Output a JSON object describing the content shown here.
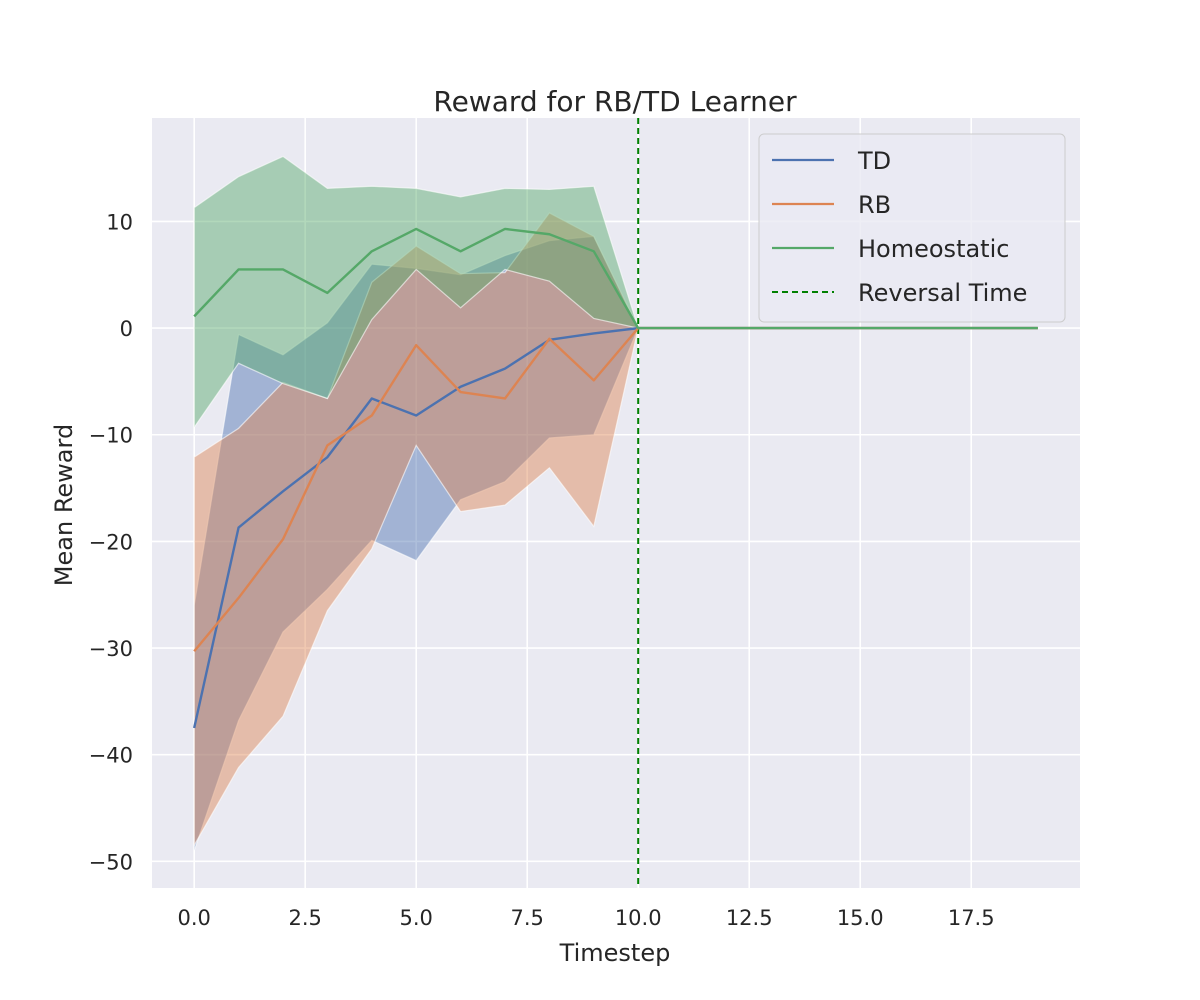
{
  "chart_data": {
    "type": "line",
    "title": "Reward for RB/TD Learner",
    "xlabel": "Timestep",
    "ylabel": "Mean Reward",
    "xlim": [
      -0.95,
      19.95
    ],
    "ylim": [
      -52.5,
      19.7
    ],
    "xticks": [
      0.0,
      2.5,
      5.0,
      7.5,
      10.0,
      12.5,
      15.0,
      17.5
    ],
    "xtick_labels": [
      "0.0",
      "2.5",
      "5.0",
      "7.5",
      "10.0",
      "12.5",
      "15.0",
      "17.5"
    ],
    "yticks": [
      10,
      0,
      -10,
      -20,
      -30,
      -40,
      -50
    ],
    "ytick_labels": [
      "10",
      "0",
      "−10",
      "−20",
      "−30",
      "−40",
      "−50"
    ],
    "grid": true,
    "legend_position": "top-right",
    "x": [
      0,
      1,
      2,
      3,
      4,
      5,
      6,
      7,
      8,
      9,
      10,
      11,
      12,
      13,
      14,
      15,
      16,
      17,
      18,
      19
    ],
    "series": [
      {
        "name": "TD",
        "color": "#4c72b0",
        "values": [
          -37.5,
          -18.7,
          -15.3,
          -12.1,
          -6.6,
          -8.2,
          -5.5,
          -3.8,
          -1.1,
          -0.5,
          0,
          0,
          0,
          0,
          0,
          0,
          0,
          0,
          0,
          0
        ],
        "band_upper": [
          -26.0,
          -0.6,
          -2.5,
          0.5,
          6.0,
          5.6,
          5.0,
          6.8,
          8.2,
          8.6,
          0
        ],
        "band_lower": [
          -49.0,
          -36.8,
          -28.5,
          -24.5,
          -19.9,
          -21.8,
          -16.1,
          -14.4,
          -10.3,
          -10.0,
          0
        ]
      },
      {
        "name": "RB",
        "color": "#dd8452",
        "values": [
          -30.3,
          -25.3,
          -19.8,
          -11.0,
          -8.2,
          -1.6,
          -6.0,
          -6.6,
          -1.0,
          -4.9,
          0,
          0,
          0,
          0,
          0,
          0,
          0,
          0,
          0,
          0
        ],
        "band_upper": [
          -12.1,
          -9.4,
          -5.1,
          -6.6,
          4.3,
          7.7,
          5.1,
          5.2,
          10.8,
          8.6,
          0
        ],
        "band_lower": [
          -48.5,
          -41.2,
          -36.4,
          -26.5,
          -20.7,
          -11.0,
          -17.2,
          -16.6,
          -13.1,
          -18.6,
          0
        ]
      },
      {
        "name": "Homeostatic",
        "color": "#55a868",
        "values": [
          1.1,
          5.5,
          5.5,
          3.3,
          7.2,
          9.3,
          7.2,
          9.3,
          8.8,
          7.2,
          0,
          0,
          0,
          0,
          0,
          0,
          0,
          0,
          0,
          0
        ],
        "band_upper": [
          11.3,
          14.2,
          16.1,
          13.1,
          13.3,
          13.1,
          12.3,
          13.1,
          13.0,
          13.3,
          0
        ],
        "band_lower": [
          -9.3,
          -3.3,
          -5.2,
          -6.6,
          0.8,
          5.5,
          1.9,
          5.5,
          4.4,
          0.9,
          0
        ]
      }
    ],
    "vline": {
      "x": 10,
      "label": "Reversal Time",
      "color": "#008000",
      "style": "dashed"
    }
  }
}
